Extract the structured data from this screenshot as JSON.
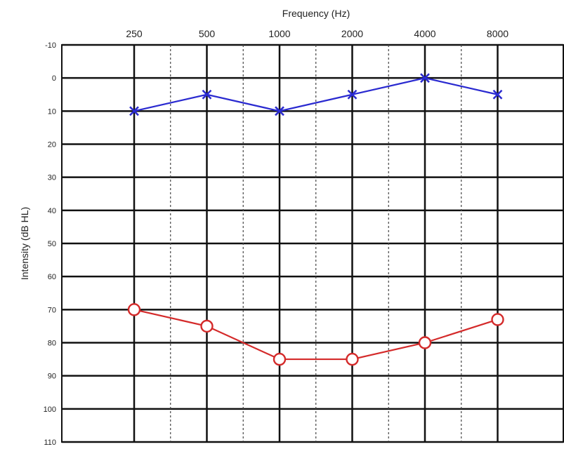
{
  "chart_data": {
    "type": "line",
    "xlabel": "Frequency (Hz)",
    "ylabel": "Intensity (dB HL)",
    "x_scale": "log2",
    "y_inverted": true,
    "ylim": [
      -10,
      110
    ],
    "y_ticks": [
      -10,
      0,
      10,
      20,
      30,
      40,
      50,
      60,
      70,
      80,
      90,
      100,
      110
    ],
    "categories": [
      "250",
      "500",
      "1000",
      "2000",
      "4000",
      "8000"
    ],
    "grid": true,
    "series": [
      {
        "marker": "x",
        "color": "#2a2ad0",
        "values": [
          10,
          5,
          10,
          5,
          0,
          5
        ]
      },
      {
        "marker": "o",
        "color": "#d42a2a",
        "values": [
          70,
          75,
          85,
          85,
          80,
          73
        ]
      }
    ]
  }
}
